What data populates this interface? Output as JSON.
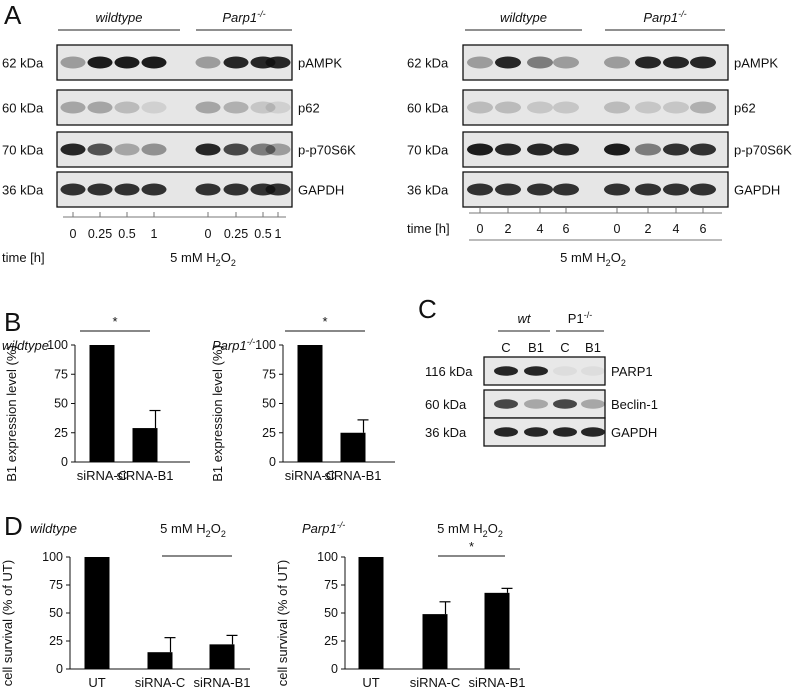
{
  "panelA": {
    "letter": "A",
    "left": {
      "groups": [
        {
          "label": "wildtype",
          "sup": ""
        },
        {
          "label": "Parp1",
          "sup": "-/-"
        }
      ],
      "blots": [
        {
          "kda": "62 kDa",
          "name": "pAMPK",
          "bands": [
            0.35,
            0.95,
            0.95,
            0.95,
            0.35,
            0.9,
            0.9,
            0.9
          ]
        },
        {
          "kda": "60 kDa",
          "name": "p62",
          "bands": [
            0.3,
            0.3,
            0.2,
            0.1,
            0.3,
            0.25,
            0.15,
            0.1
          ]
        },
        {
          "kda": "70 kDa",
          "name": "p-p70S6K",
          "bands": [
            0.9,
            0.7,
            0.3,
            0.4,
            0.9,
            0.75,
            0.5,
            0.35
          ]
        },
        {
          "kda": "36 kDa",
          "name": "GAPDH",
          "bands": [
            0.85,
            0.85,
            0.85,
            0.85,
            0.85,
            0.85,
            0.85,
            0.85
          ]
        }
      ],
      "time_label": "time [h]",
      "times": [
        "0",
        "0.25",
        "0.5",
        "1",
        "0",
        "0.25",
        "0.5",
        "1"
      ],
      "treatment": "5 mM H",
      "treatment_sub": "2",
      "treatment_tail": "O",
      "treatment_sub2": "2"
    },
    "right": {
      "groups": [
        {
          "label": "wildtype",
          "sup": ""
        },
        {
          "label": "Parp1",
          "sup": "-/-"
        }
      ],
      "blots": [
        {
          "kda": "62 kDa",
          "name": "pAMPK",
          "bands": [
            0.35,
            0.9,
            0.5,
            0.35,
            0.35,
            0.9,
            0.9,
            0.9
          ]
        },
        {
          "kda": "60 kDa",
          "name": "p62",
          "bands": [
            0.2,
            0.2,
            0.15,
            0.15,
            0.2,
            0.15,
            0.15,
            0.25
          ]
        },
        {
          "kda": "70 kDa",
          "name": "p-p70S6K",
          "bands": [
            0.95,
            0.9,
            0.9,
            0.9,
            0.95,
            0.5,
            0.85,
            0.85
          ]
        },
        {
          "kda": "36 kDa",
          "name": "GAPDH",
          "bands": [
            0.85,
            0.85,
            0.85,
            0.85,
            0.85,
            0.85,
            0.85,
            0.85
          ]
        }
      ],
      "time_label": "time [h]",
      "times": [
        "0",
        "2",
        "4",
        "6",
        "0",
        "2",
        "4",
        "6"
      ],
      "treatment": "5 mM H",
      "treatment_sub": "2",
      "treatment_tail": "O",
      "treatment_sub2": "2"
    }
  },
  "panelB": {
    "letter": "B"
  },
  "panelC": {
    "letter": "C",
    "groups": [
      {
        "label": "wt",
        "sup": ""
      },
      {
        "label": "P1",
        "sup": "-/-"
      }
    ],
    "lanes": [
      "C",
      "B1",
      "C",
      "B1"
    ],
    "blots": [
      {
        "kda": "116 kDa",
        "name": "PARP1",
        "bands": [
          0.9,
          0.9,
          0.05,
          0.05
        ]
      },
      {
        "kda": "60 kDa",
        "name": "Beclin-1",
        "bands": [
          0.75,
          0.3,
          0.75,
          0.3
        ]
      },
      {
        "kda": "36 kDa",
        "name": "GAPDH",
        "bands": [
          0.9,
          0.9,
          0.9,
          0.9
        ]
      }
    ]
  },
  "panelD": {
    "letter": "D"
  },
  "chart_data": [
    {
      "id": "B-wildtype",
      "type": "bar",
      "title": "wildtype",
      "title_sup": "",
      "ylabel": "B1 expression level (%)",
      "categories": [
        "siRNA-C",
        "siRNA-B1"
      ],
      "values": [
        100,
        29
      ],
      "errors": [
        0,
        15
      ],
      "ylim": [
        0,
        100
      ],
      "yticks": [
        0,
        25,
        50,
        75,
        100
      ],
      "significance": "*"
    },
    {
      "id": "B-parp1",
      "type": "bar",
      "title": "Parp1",
      "title_sup": "-/-",
      "ylabel": "B1 expression level (%)",
      "categories": [
        "siRNA-C",
        "siRNA-B1"
      ],
      "values": [
        100,
        25
      ],
      "errors": [
        0,
        11
      ],
      "ylim": [
        0,
        100
      ],
      "yticks": [
        0,
        25,
        50,
        75,
        100
      ],
      "significance": "*"
    },
    {
      "id": "D-wildtype",
      "type": "bar",
      "title": "wildtype",
      "title_sup": "",
      "ylabel": "cell survival (% of UT)",
      "categories": [
        "UT",
        "siRNA-C",
        "siRNA-B1"
      ],
      "values": [
        100,
        15,
        22
      ],
      "errors": [
        0,
        13,
        8
      ],
      "ylim": [
        0,
        100
      ],
      "yticks": [
        0,
        25,
        50,
        75,
        100
      ],
      "treatment": "5 mM H2O2",
      "significance": ""
    },
    {
      "id": "D-parp1",
      "type": "bar",
      "title": "Parp1",
      "title_sup": "-/-",
      "ylabel": "cell survival (% of UT)",
      "categories": [
        "UT",
        "siRNA-C",
        "siRNA-B1"
      ],
      "values": [
        100,
        49,
        68
      ],
      "errors": [
        0,
        11,
        4
      ],
      "ylim": [
        0,
        100
      ],
      "yticks": [
        0,
        25,
        50,
        75,
        100
      ],
      "treatment": "5 mM H2O2",
      "significance": "*"
    }
  ]
}
